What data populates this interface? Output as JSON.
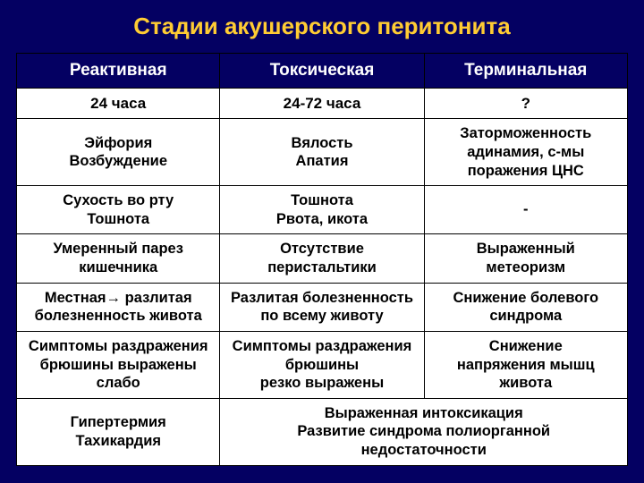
{
  "title": "Стадии акушерского перитонита",
  "table": {
    "colors": {
      "page_bg": "#040062",
      "title_color": "#ffcc33",
      "header_bg": "#040062",
      "header_text": "#ffffff",
      "cell_bg": "#ffffff",
      "cell_text": "#000000",
      "border": "#000000"
    },
    "col_widths_pct": [
      33.3,
      33.4,
      33.3
    ],
    "headers": [
      "Реактивная",
      "Токсическая",
      "Терминальная"
    ],
    "rows": [
      {
        "cells": [
          "24 часа",
          "24-72 часа",
          "?"
        ],
        "class": "timerow"
      },
      {
        "cells": [
          "Эйфория\nВозбуждение",
          "Вялость\nАпатия",
          "Заторможенность\nадинамия, с-мы\nпоражения ЦНС"
        ]
      },
      {
        "cells": [
          "Сухость во рту\nТошнота",
          "Тошнота\nРвота, икота",
          "-"
        ]
      },
      {
        "cells": [
          "Умеренный парез\nкишечника",
          "Отсутствие\nперистальтики",
          "Выраженный\nметеоризм"
        ]
      },
      {
        "cells": [
          "Местная→ разлитая\nболезненность живота",
          "Разлитая болезненность\nпо всему животу",
          "Снижение болевого\nсиндрома"
        ]
      },
      {
        "cells": [
          "Симптомы раздражения\nбрюшины выражены\nслабо",
          "Симптомы раздражения\nбрюшины\nрезко выражены",
          "Снижение\nнапряжения мышц\nживота"
        ]
      }
    ],
    "footer": {
      "left": "Гипертермия\nТахикардия",
      "right": "Выраженная интоксикация\nРазвитие синдрома полиорганной\nнедостаточности",
      "right_colspan": 2
    }
  }
}
